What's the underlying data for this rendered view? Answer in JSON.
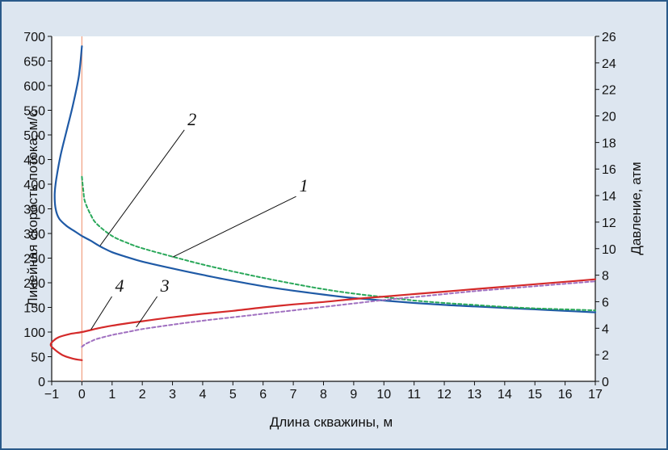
{
  "chart_data": {
    "type": "line",
    "xlabel": "Длина скважины, м",
    "ylabel_left": "Линейная скорость потока, м/с",
    "ylabel_right": "Давление, атм",
    "xlim": [
      -1,
      17
    ],
    "ylim_left": [
      0,
      700
    ],
    "ylim_right": [
      0,
      26
    ],
    "x_ticks": [
      "−1",
      "0",
      "1",
      "2",
      "3",
      "4",
      "5",
      "6",
      "7",
      "8",
      "9",
      "10",
      "11",
      "12",
      "13",
      "14",
      "15",
      "16",
      "17"
    ],
    "y_left_ticks": [
      "0",
      "50",
      "100",
      "150",
      "200",
      "250",
      "300",
      "350",
      "400",
      "450",
      "500",
      "550",
      "600",
      "650",
      "700"
    ],
    "y_right_ticks": [
      "0",
      "2",
      "4",
      "6",
      "8",
      "10",
      "12",
      "14",
      "16",
      "18",
      "20",
      "22",
      "24",
      "26"
    ],
    "vertical_marker_x": 0,
    "grid": false,
    "series": [
      {
        "label": "2",
        "axis": "left",
        "style": "solid",
        "color": "#1f5aa6",
        "points": [
          [
            0,
            680
          ],
          [
            -0.1,
            620
          ],
          [
            -0.3,
            560
          ],
          [
            -0.5,
            510
          ],
          [
            -0.7,
            460
          ],
          [
            -0.85,
            410
          ],
          [
            -0.9,
            380
          ],
          [
            -0.87,
            350
          ],
          [
            -0.75,
            330
          ],
          [
            -0.5,
            315
          ],
          [
            -0.25,
            305
          ],
          [
            0,
            295
          ],
          [
            0.3,
            285
          ],
          [
            0.6,
            274
          ],
          [
            1,
            262
          ],
          [
            1.5,
            252
          ],
          [
            2,
            243
          ],
          [
            3,
            229
          ],
          [
            4,
            216
          ],
          [
            5,
            204
          ],
          [
            6,
            193
          ],
          [
            7,
            184
          ],
          [
            8,
            176
          ],
          [
            9,
            169
          ],
          [
            10,
            164
          ],
          [
            11,
            159
          ],
          [
            12,
            155
          ],
          [
            13,
            152
          ],
          [
            14,
            149
          ],
          [
            15,
            146
          ],
          [
            16,
            143
          ],
          [
            17,
            140
          ]
        ]
      },
      {
        "label": "1",
        "axis": "left",
        "style": "dashed",
        "color": "#2aa85a",
        "points": [
          [
            0,
            415
          ],
          [
            0.05,
            385
          ],
          [
            0.1,
            365
          ],
          [
            0.3,
            337
          ],
          [
            0.5,
            319
          ],
          [
            1,
            295
          ],
          [
            1.5,
            281
          ],
          [
            2,
            270
          ],
          [
            3,
            253
          ],
          [
            4,
            237
          ],
          [
            5,
            223
          ],
          [
            6,
            210
          ],
          [
            7,
            198
          ],
          [
            8,
            187
          ],
          [
            9,
            178
          ],
          [
            10,
            171
          ],
          [
            11,
            164
          ],
          [
            12,
            159
          ],
          [
            13,
            155
          ],
          [
            14,
            151
          ],
          [
            15,
            148
          ],
          [
            16,
            146
          ],
          [
            17,
            144
          ]
        ]
      },
      {
        "label": "4",
        "axis": "left",
        "style": "solid",
        "color": "#d42a2a",
        "points": [
          [
            0,
            43
          ],
          [
            -0.3,
            46
          ],
          [
            -0.6,
            52
          ],
          [
            -0.85,
            62
          ],
          [
            -1.03,
            73
          ],
          [
            -0.95,
            82
          ],
          [
            -0.75,
            90
          ],
          [
            -0.4,
            96
          ],
          [
            0,
            100
          ],
          [
            0.5,
            107
          ],
          [
            1,
            113
          ],
          [
            2,
            122
          ],
          [
            3,
            130
          ],
          [
            4,
            137
          ],
          [
            5,
            143
          ],
          [
            6,
            150
          ],
          [
            7,
            156
          ],
          [
            8,
            161
          ],
          [
            9,
            167
          ],
          [
            10,
            172
          ],
          [
            11,
            177
          ],
          [
            12,
            182
          ],
          [
            13,
            187
          ],
          [
            14,
            192
          ],
          [
            15,
            197
          ],
          [
            16,
            202
          ],
          [
            17,
            207
          ]
        ]
      },
      {
        "label": "3",
        "axis": "left",
        "style": "dashed",
        "color": "#a070c0",
        "points": [
          [
            0,
            70
          ],
          [
            0.1,
            75
          ],
          [
            0.3,
            81
          ],
          [
            0.5,
            86
          ],
          [
            1,
            94
          ],
          [
            1.5,
            100
          ],
          [
            2,
            106
          ],
          [
            3,
            115
          ],
          [
            4,
            123
          ],
          [
            5,
            130
          ],
          [
            6,
            137
          ],
          [
            7,
            144
          ],
          [
            8,
            151
          ],
          [
            9,
            158
          ],
          [
            10,
            165
          ],
          [
            11,
            171
          ],
          [
            12,
            177
          ],
          [
            13,
            183
          ],
          [
            14,
            188
          ],
          [
            15,
            193
          ],
          [
            16,
            198
          ],
          [
            17,
            203
          ]
        ]
      }
    ],
    "curve_labels": [
      {
        "text": "2",
        "x": 3.5,
        "y": 520,
        "lx": 0.6,
        "ly": 275
      },
      {
        "text": "1",
        "x": 7.2,
        "y": 385,
        "lx": 3.0,
        "ly": 252
      },
      {
        "text": "4",
        "x": 1.1,
        "y": 182,
        "lx": 0.3,
        "ly": 105
      },
      {
        "text": "3",
        "x": 2.6,
        "y": 182,
        "lx": 1.8,
        "ly": 110
      }
    ]
  }
}
